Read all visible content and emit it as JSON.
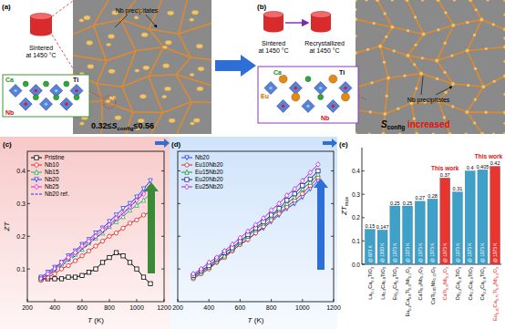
{
  "schematic": {
    "panel_a": {
      "label": "(a)",
      "cylinder_text": "Sintered at 1450 °C",
      "precipitate_label": "Nb precipitates",
      "atoms": [
        "Ca",
        "Ti",
        "Nb"
      ],
      "entropy": {
        "pre": "0.32≤",
        "symbol": "S",
        "sub": "config",
        "post": "≤0.56"
      }
    },
    "panel_b": {
      "label": "(b)",
      "cylinder_texts": [
        "Sintered at 1450 °C",
        "Recrystallized at 1450 °C"
      ],
      "precipitate_label": "Nb precipitates",
      "atoms": [
        "Eu",
        "Ca",
        "Ti",
        "Nb"
      ],
      "entropy": {
        "symbol": "S",
        "sub": "config",
        "post": "increased"
      }
    }
  },
  "chart_data": [
    {
      "type": "line",
      "title": "(c)",
      "x_label": "T (K)",
      "y_label": "ZT",
      "x": [
        300,
        350,
        400,
        450,
        500,
        550,
        600,
        650,
        700,
        750,
        800,
        850,
        900,
        950,
        1000,
        1050,
        1100
      ],
      "series": [
        {
          "name": "Pristine",
          "color": "#000000",
          "marker": "square",
          "values": [
            0.07,
            0.07,
            0.07,
            0.07,
            0.075,
            0.075,
            0.08,
            0.09,
            0.1,
            0.12,
            0.135,
            0.15,
            0.14,
            0.12,
            0.1,
            0.075,
            0.055
          ]
        },
        {
          "name": "Nb10",
          "color": "#e0201b",
          "marker": "circle",
          "values": [
            0.065,
            0.075,
            0.085,
            0.1,
            0.11,
            0.125,
            0.14,
            0.155,
            0.17,
            0.185,
            0.2,
            0.21,
            0.225,
            0.24,
            0.25,
            0.265,
            0.275
          ]
        },
        {
          "name": "Nb15",
          "color": "#22b14c",
          "marker": "triangle-up",
          "values": [
            0.07,
            0.085,
            0.1,
            0.115,
            0.13,
            0.145,
            0.16,
            0.18,
            0.195,
            0.21,
            0.23,
            0.245,
            0.26,
            0.28,
            0.295,
            0.31,
            0.33
          ]
        },
        {
          "name": "Nb20",
          "color": "#1f3ff0",
          "marker": "triangle-down",
          "values": [
            0.075,
            0.09,
            0.105,
            0.12,
            0.14,
            0.155,
            0.175,
            0.19,
            0.21,
            0.225,
            0.245,
            0.265,
            0.285,
            0.3,
            0.32,
            0.345,
            0.37
          ]
        },
        {
          "name": "Nb25",
          "color": "#e020e0",
          "marker": "diamond",
          "values": [
            0.07,
            0.085,
            0.1,
            0.12,
            0.135,
            0.15,
            0.17,
            0.185,
            0.2,
            0.22,
            0.235,
            0.255,
            0.27,
            0.29,
            0.31,
            0.33,
            0.35
          ]
        },
        {
          "name": "Nb20 ref.",
          "color": "#2a2aff",
          "marker": "none",
          "line_style": "dashed",
          "values": [
            0.065,
            0.08,
            0.095,
            0.11,
            0.125,
            0.14,
            0.16,
            0.175,
            0.195,
            0.21,
            0.23,
            0.25,
            0.27,
            0.29,
            0.31,
            0.335,
            0.36
          ]
        }
      ],
      "xlim": [
        200,
        1200
      ],
      "xticks": [
        200,
        400,
        600,
        800,
        1000,
        1200
      ],
      "ylim": [
        0,
        0.46
      ],
      "yticks": [
        0.1,
        0.2,
        0.3,
        0.4
      ],
      "legend": "upper left"
    },
    {
      "type": "line",
      "title": "(d)",
      "x_label": "T (K)",
      "x": [
        300,
        350,
        400,
        450,
        500,
        550,
        600,
        650,
        700,
        750,
        800,
        850,
        900,
        950,
        1000,
        1050,
        1100
      ],
      "series": [
        {
          "name": "Nb20",
          "color": "#1f3ff0",
          "marker": "triangle-down",
          "values": [
            0.075,
            0.09,
            0.105,
            0.12,
            0.14,
            0.155,
            0.175,
            0.19,
            0.21,
            0.225,
            0.245,
            0.265,
            0.285,
            0.3,
            0.32,
            0.345,
            0.37
          ]
        },
        {
          "name": "Eu10Nb20",
          "color": "#e0201b",
          "marker": "circle",
          "values": [
            0.07,
            0.085,
            0.1,
            0.12,
            0.135,
            0.155,
            0.175,
            0.19,
            0.21,
            0.23,
            0.25,
            0.27,
            0.29,
            0.31,
            0.33,
            0.355,
            0.38
          ]
        },
        {
          "name": "Eu15Nb20",
          "color": "#1e8f3a",
          "marker": "triangle-up",
          "values": [
            0.075,
            0.09,
            0.105,
            0.125,
            0.14,
            0.16,
            0.18,
            0.2,
            0.22,
            0.24,
            0.26,
            0.28,
            0.3,
            0.32,
            0.345,
            0.365,
            0.39
          ]
        },
        {
          "name": "Eu20Nb20",
          "color": "#20208f",
          "marker": "square",
          "values": [
            0.08,
            0.095,
            0.11,
            0.13,
            0.15,
            0.165,
            0.185,
            0.205,
            0.225,
            0.245,
            0.265,
            0.285,
            0.31,
            0.33,
            0.355,
            0.375,
            0.4
          ]
        },
        {
          "name": "Eu25Nb20",
          "color": "#b020e0",
          "marker": "diamond",
          "values": [
            0.085,
            0.1,
            0.12,
            0.135,
            0.155,
            0.175,
            0.195,
            0.215,
            0.235,
            0.255,
            0.28,
            0.3,
            0.325,
            0.345,
            0.37,
            0.395,
            0.42
          ]
        }
      ],
      "xlim": [
        200,
        1200
      ],
      "xticks": [
        200,
        400,
        600,
        800,
        1000,
        1200
      ],
      "ylim": [
        0,
        0.46
      ],
      "yticks": [
        0.1,
        0.2,
        0.3,
        0.4
      ],
      "tick_labels": "x",
      "legend": "upper left"
    },
    {
      "type": "bar",
      "title": "(e)",
      "y_label": "ZTmax",
      "categories": [
        "La0.1Ca0.9TiO3",
        "La0.2Ca0.8TiO3",
        "Eu0.2Ca0.8TiO3",
        "Eu0.2Ca0.8Ti0.9Nb0.1O3",
        "CaTi0.9Nb0.1O3",
        "CaTi0.85Nb0.15O3",
        "CaTi0.8Nb0.2O3",
        "Dy0.2Ca0.8TiO3",
        "Ce0.1Ca0.9TiO3",
        "Ce0.2Ca0.8TiO3",
        "Eu0.25Ca0.75Ti0.8Nb0.2O3"
      ],
      "values": [
        0.15,
        0.147,
        0.25,
        0.25,
        0.27,
        0.28,
        0.37,
        0.31,
        0.4,
        0.405,
        0.42
      ],
      "colors": [
        "#3fa0c8",
        "#3fa0c8",
        "#3fa0c8",
        "#3fa0c8",
        "#3fa0c8",
        "#3fa0c8",
        "#e8352f",
        "#3fa0c8",
        "#3fa0c8",
        "#3fa0c8",
        "#e8352f"
      ],
      "bar_notes": [
        "@ 873 K",
        "@ 1000 K",
        "@ 1073 K",
        "@ 1073 K",
        "@ 1073 K",
        "@ 1073 K",
        "@ 1073 K",
        "@ 1073 K",
        "@ 1073 K",
        "@ 1073 K",
        "@ 1073 K"
      ],
      "notes": [
        null,
        null,
        null,
        null,
        null,
        null,
        "This work",
        null,
        null,
        null,
        "This work"
      ],
      "data_labels": true,
      "ylim": [
        0,
        0.5
      ],
      "yticks": [
        {
          "value": 0,
          "label": "0.0"
        },
        0.1,
        0.2,
        0.3,
        0.4
      ]
    }
  ]
}
